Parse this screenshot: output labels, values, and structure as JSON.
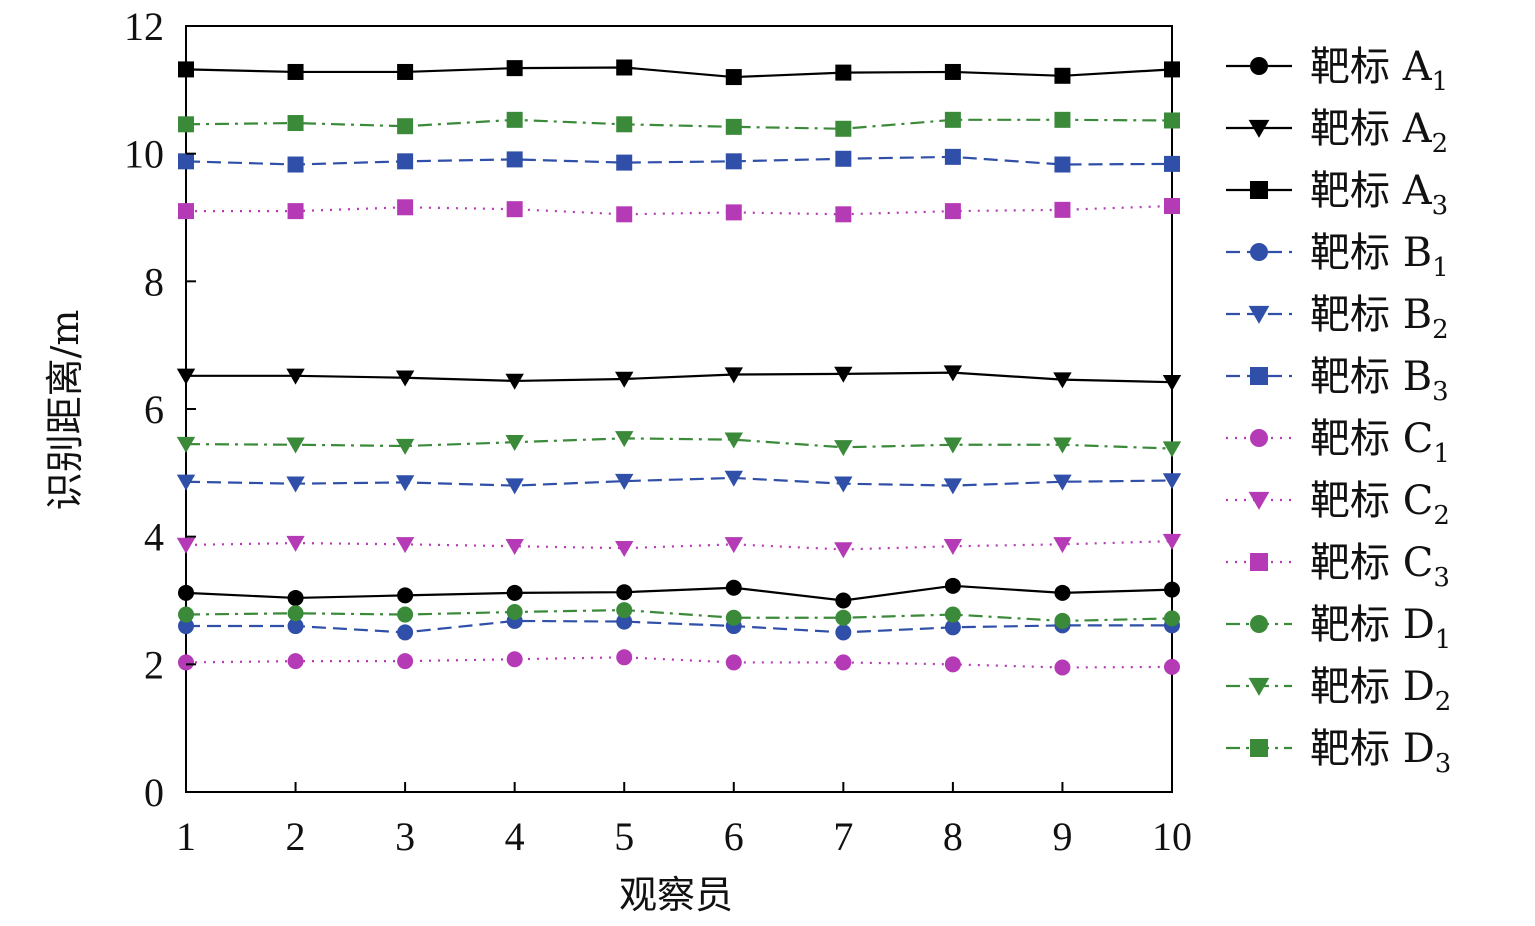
{
  "chart_data": {
    "type": "line",
    "title": "",
    "xlabel": "观察员",
    "ylabel": "识别距离/m",
    "x": [
      1,
      2,
      3,
      4,
      5,
      6,
      7,
      8,
      9,
      10
    ],
    "xticks": [
      "1",
      "2",
      "3",
      "4",
      "5",
      "6",
      "7",
      "8",
      "9",
      "10"
    ],
    "ylim": [
      0,
      12
    ],
    "yticks": [
      "0",
      "2",
      "4",
      "6",
      "8",
      "10",
      "12"
    ],
    "grid": false,
    "legend_position": "right",
    "series": [
      {
        "name": "靶标 A",
        "sub": "1",
        "color": "#000000",
        "dash": "solid",
        "marker": "circle",
        "values": [
          3.12,
          3.04,
          3.08,
          3.12,
          3.13,
          3.2,
          3.0,
          3.23,
          3.12,
          3.17
        ]
      },
      {
        "name": "靶标 A",
        "sub": "2",
        "color": "#000000",
        "dash": "solid",
        "marker": "triangle",
        "values": [
          6.52,
          6.52,
          6.49,
          6.44,
          6.47,
          6.54,
          6.55,
          6.57,
          6.46,
          6.42
        ]
      },
      {
        "name": "靶标 A",
        "sub": "3",
        "color": "#000000",
        "dash": "solid",
        "marker": "square",
        "values": [
          11.32,
          11.28,
          11.28,
          11.34,
          11.35,
          11.2,
          11.27,
          11.28,
          11.22,
          11.32
        ]
      },
      {
        "name": "靶标 B",
        "sub": "1",
        "color": "#2f4fa8",
        "dash": "dash",
        "marker": "circle",
        "values": [
          2.6,
          2.6,
          2.5,
          2.68,
          2.67,
          2.6,
          2.5,
          2.58,
          2.61,
          2.61
        ]
      },
      {
        "name": "靶标 B",
        "sub": "2",
        "color": "#2f4fa8",
        "dash": "dash",
        "marker": "triangle",
        "values": [
          4.86,
          4.83,
          4.85,
          4.8,
          4.87,
          4.92,
          4.83,
          4.8,
          4.86,
          4.88
        ]
      },
      {
        "name": "靶标 B",
        "sub": "3",
        "color": "#2f4fa8",
        "dash": "dash",
        "marker": "square",
        "values": [
          9.88,
          9.83,
          9.88,
          9.91,
          9.86,
          9.88,
          9.92,
          9.95,
          9.83,
          9.84
        ]
      },
      {
        "name": "靶标 C",
        "sub": "1",
        "color": "#b53ab5",
        "dash": "dot",
        "marker": "circle",
        "values": [
          2.03,
          2.05,
          2.05,
          2.08,
          2.11,
          2.03,
          2.03,
          2.0,
          1.95,
          1.96
        ]
      },
      {
        "name": "靶标 C",
        "sub": "2",
        "color": "#b53ab5",
        "dash": "dot",
        "marker": "triangle",
        "values": [
          3.87,
          3.9,
          3.88,
          3.85,
          3.82,
          3.88,
          3.8,
          3.85,
          3.88,
          3.93
        ]
      },
      {
        "name": "靶标 C",
        "sub": "3",
        "color": "#b53ab5",
        "dash": "dot",
        "marker": "square",
        "values": [
          9.1,
          9.1,
          9.16,
          9.13,
          9.05,
          9.08,
          9.05,
          9.1,
          9.12,
          9.18
        ]
      },
      {
        "name": "靶标 D",
        "sub": "1",
        "color": "#3a8a3a",
        "dash": "dashdot",
        "marker": "circle",
        "values": [
          2.78,
          2.8,
          2.78,
          2.82,
          2.85,
          2.73,
          2.73,
          2.78,
          2.68,
          2.72
        ]
      },
      {
        "name": "靶标 D",
        "sub": "2",
        "color": "#3a8a3a",
        "dash": "dashdot",
        "marker": "triangle",
        "values": [
          5.45,
          5.44,
          5.42,
          5.48,
          5.54,
          5.52,
          5.4,
          5.44,
          5.44,
          5.38
        ]
      },
      {
        "name": "靶标 D",
        "sub": "3",
        "color": "#3a8a3a",
        "dash": "dashdot",
        "marker": "square",
        "values": [
          10.46,
          10.48,
          10.43,
          10.53,
          10.46,
          10.42,
          10.39,
          10.53,
          10.53,
          10.52
        ]
      }
    ]
  }
}
